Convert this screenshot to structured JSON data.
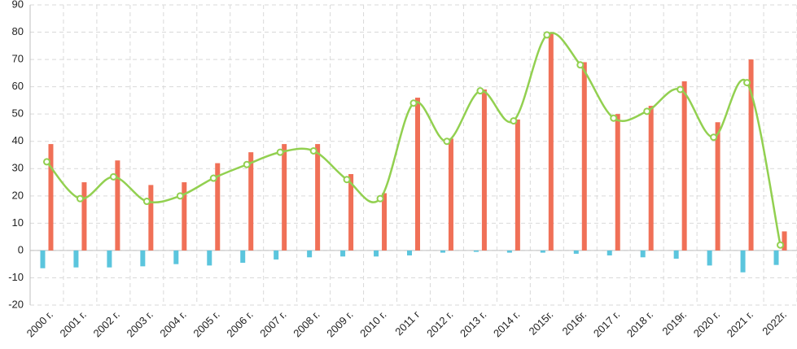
{
  "chart_data": {
    "type": "bar-line",
    "categories": [
      "2000 г.",
      "2001 г.",
      "2002 г.",
      "2003 г.",
      "2004 г.",
      "2005 г.",
      "2006 г.",
      "2007 г.",
      "2008 г.",
      "2009 г.",
      "2010 г.",
      "2011 г",
      "2012 г.",
      "2013 г.",
      "2014 г.",
      "2015г.",
      "2016г.",
      "2017 г.",
      "2018 г.",
      "2019г.",
      "2020 г.",
      "2021 г.",
      "2022г."
    ],
    "series": [
      {
        "type": "bar",
        "color": "#5bc5dd",
        "values": [
          -6.5,
          -6.2,
          -6.2,
          -5.8,
          -5,
          -5.5,
          -4.5,
          -3.3,
          -2.5,
          -2.2,
          -2.2,
          -1.8,
          -0.8,
          -0.5,
          -0.8,
          -0.8,
          -1.2,
          -1.8,
          -2.5,
          -3,
          -5.5,
          -8,
          -5.3
        ]
      },
      {
        "type": "bar",
        "color": "#f07057",
        "values": [
          39,
          25,
          33,
          24,
          25,
          32,
          36,
          39,
          39,
          28,
          21,
          56,
          41,
          59,
          48,
          80,
          69,
          50,
          53,
          62,
          47,
          70,
          7
        ]
      },
      {
        "type": "line",
        "color": "#92d050",
        "values": [
          32.5,
          19,
          27,
          18,
          20,
          26.5,
          31.5,
          36,
          36.5,
          26,
          19,
          54,
          40,
          58.5,
          47.5,
          79,
          68,
          48.5,
          51,
          59,
          41.5,
          61.5,
          2
        ]
      }
    ],
    "ylim": [
      -20,
      90
    ],
    "yticks": [
      -20,
      -10,
      0,
      10,
      20,
      30,
      40,
      50,
      60,
      70,
      80,
      90
    ],
    "grid": true
  }
}
